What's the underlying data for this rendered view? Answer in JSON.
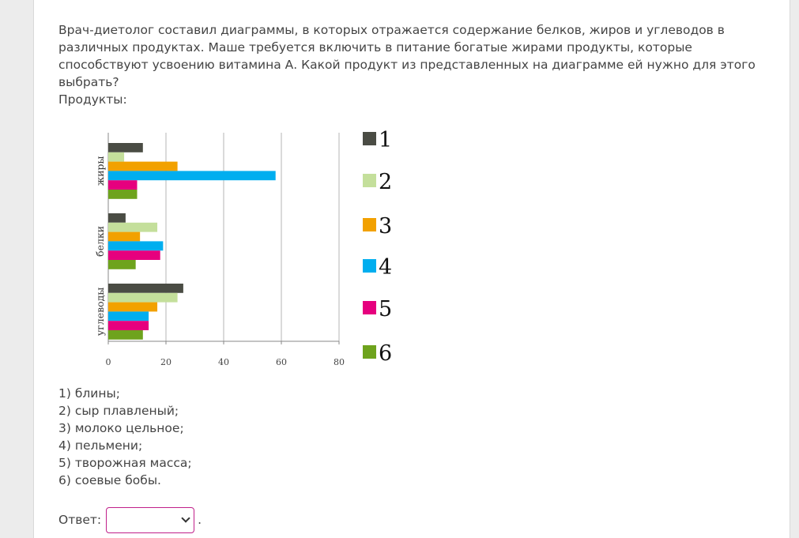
{
  "question": "Врач-диетолог составил диаграммы, в которых отражается содержание белков, жиров и углеводов в различных продуктах. Маше требуется включить в питание богатые жирами продукты, которые способствуют усвоению витамина А. Какой продукт из представленных на диаграмме ей нужно для этого выбрать?",
  "products_label": "Продукты:",
  "options": [
    "1) блины;",
    "2) сыр плавленый;",
    "3) молоко цельное;",
    "4) пельмени;",
    "5) творожная масса;",
    "6) соевые бобы."
  ],
  "answer": {
    "label": "Ответ:",
    "selected": "",
    "suffix": "."
  },
  "chart_data": {
    "type": "bar",
    "orientation": "horizontal",
    "categories": [
      "жиры",
      "белки",
      "углеводы"
    ],
    "series": [
      {
        "name": "1",
        "color": "#4a4c44",
        "values": [
          12,
          6,
          26
        ]
      },
      {
        "name": "2",
        "color": "#c4df9b",
        "values": [
          5.5,
          17,
          24
        ]
      },
      {
        "name": "3",
        "color": "#f2a100",
        "values": [
          24,
          11,
          17
        ]
      },
      {
        "name": "4",
        "color": "#00aeef",
        "values": [
          58,
          19,
          14
        ]
      },
      {
        "name": "5",
        "color": "#e6007e",
        "values": [
          10,
          18,
          14
        ]
      },
      {
        "name": "6",
        "color": "#6ea31d",
        "values": [
          10,
          9.5,
          12
        ]
      }
    ],
    "xlim": [
      0,
      80
    ],
    "xticks": [
      "0",
      "20",
      "40",
      "60",
      "80"
    ],
    "grid": true,
    "legend": "right"
  }
}
